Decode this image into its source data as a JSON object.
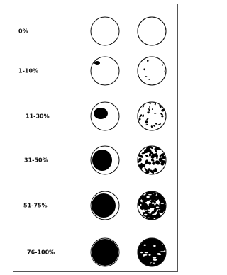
{
  "rows": [
    {
      "label": "0%"
    },
    {
      "label": "1-10%"
    },
    {
      "label": "11-30%"
    },
    {
      "label": "31-50%"
    },
    {
      "label": "51-75%"
    },
    {
      "label": "76-100%"
    }
  ]
}
